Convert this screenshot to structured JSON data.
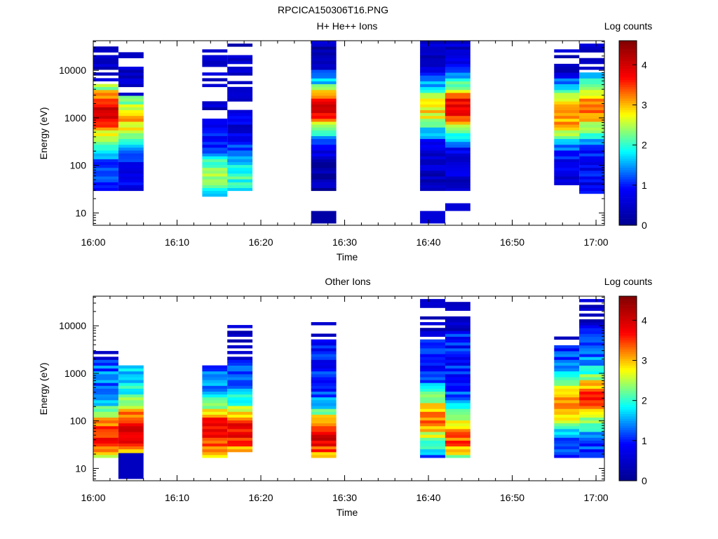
{
  "file_title": "RPCICA150306T16.PNG",
  "colors": {
    "colormap": [
      "#00008f",
      "#0000ff",
      "#00ffff",
      "#ffff00",
      "#ff0000",
      "#800000"
    ],
    "axis": "#000000"
  },
  "chart_data": [
    {
      "type": "heatmap",
      "title": "H+ He++ Ions",
      "xlabel": "Time",
      "ylabel": "Energy (eV)",
      "yscale": "log",
      "ylim": [
        5.5,
        42000
      ],
      "xlim": [
        "16:00",
        "17:01"
      ],
      "x_tick_labels": [
        "16:00",
        "16:10",
        "16:20",
        "16:30",
        "16:40",
        "16:50",
        "17:00"
      ],
      "y_tick_labels": [
        "10",
        "100",
        "1000",
        "10000"
      ],
      "colorbar": {
        "label": "Log counts",
        "range": [
          0,
          4.6
        ],
        "tick_labels": [
          "0",
          "1",
          "2",
          "3",
          "4"
        ]
      },
      "columns": [
        {
          "time_start": "16:00",
          "time_end": "16:03",
          "e_min": 28,
          "e_max": 38000,
          "peak_energy": 1300,
          "peak_value": 3.9,
          "value_min": 1.2,
          "sparse_above": 5500
        },
        {
          "time_start": "16:03",
          "time_end": "16:06",
          "e_min": 28,
          "e_max": 30000,
          "peak_energy": 1000,
          "peak_value": 3.0,
          "value_min": 0.8,
          "sparse_above": 3000
        },
        {
          "time_start": "16:13",
          "time_end": "16:16",
          "e_min": 22,
          "e_max": 38000,
          "peak_energy": 60,
          "peak_value": 2.3,
          "value_min": 0.7,
          "sparse_above": 1000
        },
        {
          "time_start": "16:16",
          "time_end": "16:19",
          "e_min": 28,
          "e_max": 38000,
          "peak_energy": 60,
          "peak_value": 2.0,
          "value_min": 0.6,
          "sparse_above": 1400
        },
        {
          "time_start": "16:26",
          "time_end": "16:29",
          "e_min": 28,
          "e_max": 40000,
          "peak_energy": 1600,
          "peak_value": 3.8,
          "value_min": 0.3,
          "sparse_above": 40000
        },
        {
          "time_start": "16:39",
          "time_end": "16:42",
          "e_min": 28,
          "e_max": 40000,
          "peak_energy": 1500,
          "peak_value": 2.8,
          "value_min": 0.4,
          "sparse_above": 40000
        },
        {
          "time_start": "16:42",
          "time_end": "16:45",
          "e_min": 28,
          "e_max": 40000,
          "peak_energy": 1600,
          "peak_value": 3.9,
          "value_min": 0.5,
          "sparse_above": 40000
        },
        {
          "time_start": "16:55",
          "time_end": "16:58",
          "e_min": 38,
          "e_max": 34000,
          "peak_energy": 1200,
          "peak_value": 3.3,
          "value_min": 0.6,
          "sparse_above": 8000
        },
        {
          "time_start": "16:58",
          "time_end": "17:01",
          "e_min": 25,
          "e_max": 38000,
          "peak_energy": 1600,
          "peak_value": 3.4,
          "value_min": 0.8,
          "sparse_above": 9000
        }
      ],
      "low_energy_cells": [
        {
          "time_start": "16:26",
          "time_end": "16:29",
          "e_min": 6,
          "e_max": 11,
          "value": 0.2
        },
        {
          "time_start": "16:39",
          "time_end": "16:42",
          "e_min": 6,
          "e_max": 11,
          "value": 0.6
        },
        {
          "time_start": "16:42",
          "time_end": "16:45",
          "e_min": 11,
          "e_max": 16,
          "value": 0.6
        }
      ]
    },
    {
      "type": "heatmap",
      "title": "Other Ions",
      "xlabel": "Time",
      "ylabel": "Energy (eV)",
      "yscale": "log",
      "ylim": [
        5.5,
        42000
      ],
      "xlim": [
        "16:00",
        "17:01"
      ],
      "x_tick_labels": [
        "16:00",
        "16:10",
        "16:20",
        "16:30",
        "16:40",
        "16:50",
        "17:00"
      ],
      "y_tick_labels": [
        "10",
        "100",
        "1000",
        "10000"
      ],
      "colorbar": {
        "label": "Log counts",
        "range": [
          0,
          4.6
        ],
        "tick_labels": [
          "0",
          "1",
          "2",
          "3",
          "4"
        ]
      },
      "columns": [
        {
          "time_start": "16:00",
          "time_end": "16:03",
          "e_min": 17,
          "e_max": 4000,
          "peak_energy": 45,
          "peak_value": 3.7,
          "value_min": 1.3,
          "sparse_above": 2000
        },
        {
          "time_start": "16:03",
          "time_end": "16:06",
          "e_min": 20,
          "e_max": 1400,
          "peak_energy": 60,
          "peak_value": 4.0,
          "value_min": 1.6,
          "sparse_above": 1400
        },
        {
          "time_start": "16:13",
          "time_end": "16:16",
          "e_min": 17,
          "e_max": 1500,
          "peak_energy": 60,
          "peak_value": 3.9,
          "value_min": 1.3,
          "sparse_above": 1500
        },
        {
          "time_start": "16:16",
          "time_end": "16:19",
          "e_min": 22,
          "e_max": 12000,
          "peak_energy": 60,
          "peak_value": 3.8,
          "value_min": 1.2,
          "sparse_above": 2000
        },
        {
          "time_start": "16:26",
          "time_end": "16:29",
          "e_min": 17,
          "e_max": 13000,
          "peak_energy": 45,
          "peak_value": 3.9,
          "value_min": 1.0,
          "sparse_above": 5000
        },
        {
          "time_start": "16:39",
          "time_end": "16:42",
          "e_min": 17,
          "e_max": 38000,
          "peak_energy": 110,
          "peak_value": 3.2,
          "value_min": 1.0,
          "sparse_above": 5000
        },
        {
          "time_start": "16:42",
          "time_end": "16:45",
          "e_min": 17,
          "e_max": 30000,
          "peak_energy": 45,
          "peak_value": 3.4,
          "value_min": 1.0,
          "sparse_above": 8000
        },
        {
          "time_start": "16:55",
          "time_end": "16:58",
          "e_min": 17,
          "e_max": 7000,
          "peak_energy": 250,
          "peak_value": 3.2,
          "value_min": 1.0,
          "sparse_above": 4000
        },
        {
          "time_start": "16:58",
          "time_end": "17:01",
          "e_min": 17,
          "e_max": 38000,
          "peak_energy": 300,
          "peak_value": 3.5,
          "value_min": 1.0,
          "sparse_above": 10000
        }
      ],
      "low_energy_cells": [
        {
          "time_start": "16:03",
          "time_end": "16:06",
          "e_min": 6,
          "e_max": 21,
          "value": 0.4
        }
      ]
    }
  ]
}
